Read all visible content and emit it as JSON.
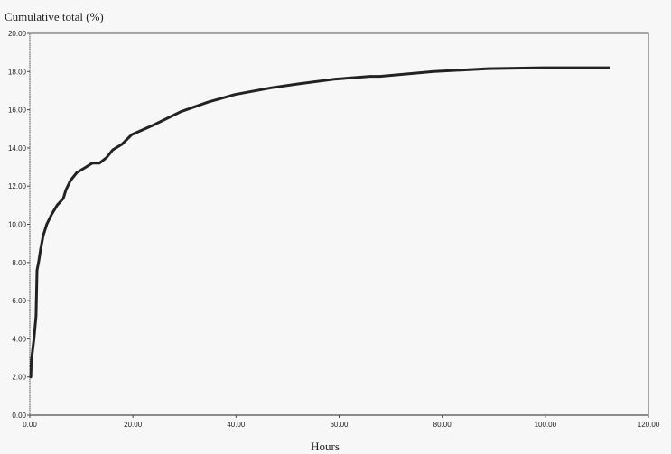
{
  "chart_data": {
    "type": "line",
    "title": "",
    "ylabel": "Cumulative total (%)",
    "xlabel": "Hours",
    "xlim": [
      0,
      120
    ],
    "ylim": [
      0,
      20
    ],
    "x_ticks": [
      "0.00",
      "20.00",
      "40.00",
      "60.00",
      "80.00",
      "100.00",
      "120.00"
    ],
    "y_ticks": [
      "0.00",
      "2.00",
      "4.00",
      "6.00",
      "8.00",
      "10.00",
      "12.00",
      "14.00",
      "16.00",
      "18.00",
      "20.00"
    ],
    "grid": false,
    "line_color": "#222222",
    "series": [
      {
        "x": [
          0.2,
          0.3,
          0.8,
          1.2,
          1.4,
          1.7,
          2.1,
          2.6,
          3.3,
          4.2,
          5.3,
          6.5,
          7.0,
          7.9,
          9.1,
          10.9,
          12.1,
          13.5,
          14.9,
          16.1,
          17.9,
          19.8,
          24,
          29.3,
          34.6,
          39.8,
          46.8,
          52,
          59,
          66,
          67.9,
          78.4,
          88.9,
          99.5,
          112.4
        ],
        "y": [
          2.0,
          2.85,
          4.0,
          5.2,
          7.6,
          8.0,
          8.7,
          9.4,
          10.0,
          10.5,
          11.0,
          11.35,
          11.8,
          12.3,
          12.7,
          13.0,
          13.2,
          13.2,
          13.5,
          13.9,
          14.2,
          14.7,
          15.2,
          15.9,
          16.4,
          16.8,
          17.15,
          17.35,
          17.6,
          17.75,
          17.75,
          18.0,
          18.15,
          18.2,
          18.2
        ]
      }
    ]
  }
}
